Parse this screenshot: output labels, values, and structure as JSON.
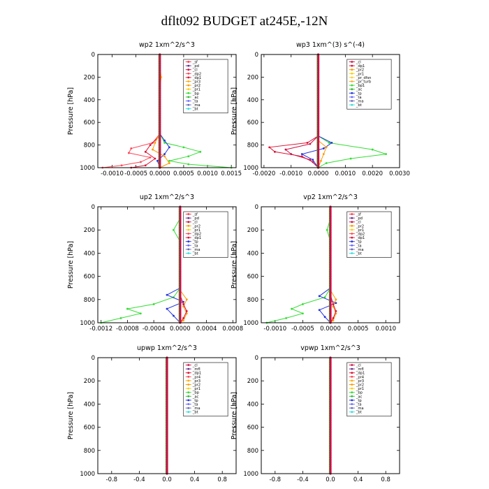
{
  "title": "dflt092  BUDGET at245E,-12N",
  "colors": {
    "sf": "#ff3344",
    "pd": "#6a2a8a",
    "cl": "#cc1144",
    "dp2": "#ff4455",
    "dp1": "#dd1133",
    "pr3": "#ffaa00",
    "pr2": "#ff9900",
    "pr1": "#ffcc00",
    "bp": "#33dd33",
    "ac": "#33bb33",
    "tp": "#2233dd",
    "ta": "#6666ff",
    "ma": "#6666bb",
    "bt": "#33dddd",
    "pr_dfsn": "#ffcc33",
    "pr_turb": "#ffaa22",
    "mfl": "#6a2a8a",
    "pr4": "#ff4455"
  },
  "chart_data": [
    {
      "type": "line",
      "title": "wp2  1xm^2/s^3",
      "ylabel": "Pressure  [hPa]",
      "xlim": [
        -0.0013,
        0.0016
      ],
      "ylim": [
        1000,
        0
      ],
      "xticks": [
        -0.001,
        -0.0005,
        0.0,
        0.0005,
        0.001,
        0.0015
      ],
      "xtick_labels": [
        "-0.0010",
        "-0.0005",
        "0.0000",
        "0.0005",
        "0.0010",
        "0.0015"
      ],
      "yticks": [
        0,
        200,
        400,
        600,
        800,
        1000
      ],
      "legend": [
        "_sf",
        "_pd",
        "_cl",
        "_dp2",
        "_dp1",
        "_pr3",
        "_pr2",
        "_pr1",
        "_bp",
        "_ac",
        "_ta",
        "_ma",
        "_bt"
      ],
      "legend_keys": [
        "sf",
        "pd",
        "cl",
        "dp2",
        "dp1",
        "pr3",
        "pr2",
        "pr1",
        "bp",
        "ac",
        "ta",
        "ma",
        "bt"
      ],
      "legend_placement": "top-right",
      "series": [
        {
          "key": "bp",
          "p": [
            700,
            780,
            820,
            860,
            900,
            940,
            970,
            1000
          ],
          "v": [
            0,
            0.0001,
            0.0005,
            0.00085,
            0.0006,
            0.0002,
            0.0006,
            0.0015
          ]
        },
        {
          "key": "dp2",
          "p": [
            700,
            780,
            830,
            870,
            910,
            950,
            980,
            1000
          ],
          "v": [
            0,
            -0.00015,
            -0.0006,
            -0.00065,
            -0.0002,
            -0.0004,
            -0.0008,
            -0.0012
          ]
        },
        {
          "key": "dp1",
          "p": [
            720,
            800,
            860,
            920,
            980,
            1000
          ],
          "v": [
            0,
            -0.0002,
            -0.0003,
            -0.0001,
            -0.0003,
            -0.0006
          ]
        },
        {
          "key": "tp",
          "p": [
            700,
            760,
            820,
            880,
            940,
            1000
          ],
          "v": [
            0,
            0.0001,
            0.0002,
            0.0001,
            -5e-05,
            0
          ]
        },
        {
          "key": "pr2",
          "p": [
            700,
            780,
            840,
            900,
            960,
            1000
          ],
          "v": [
            0,
            -0.0001,
            -0.00015,
            0.0001,
            0.0002,
            0
          ]
        },
        {
          "key": "pr1",
          "p": [
            100,
            200,
            300
          ],
          "v": [
            0,
            3e-05,
            0
          ]
        }
      ]
    },
    {
      "type": "line",
      "title": "wp3  1xm^(3) s^(-4)",
      "ylabel": "Pressure  [hPa]",
      "xlim": [
        -0.0021,
        0.003
      ],
      "ylim": [
        1000,
        0
      ],
      "xticks": [
        -0.002,
        -0.001,
        0.0,
        0.001,
        0.002,
        0.003
      ],
      "xtick_labels": [
        "-0.0020",
        "-0.0010",
        "0.0000",
        "0.0010",
        "0.0020",
        "0.0030"
      ],
      "yticks": [
        0,
        200,
        400,
        600,
        800,
        1000
      ],
      "legend": [
        "_cl",
        "_dp1",
        "_pr2",
        "_pr1",
        "_pr_dfsn",
        "_pr_turb",
        "_bp1",
        "_ac",
        "_tp",
        "_ta",
        "_ma",
        "_bt"
      ],
      "legend_keys": [
        "cl",
        "dp1",
        "pr2",
        "pr1",
        "pr_dfsn",
        "pr_turb",
        "bp",
        "ac",
        "tp",
        "ta",
        "ma",
        "bt"
      ],
      "legend_placement": "top-right",
      "series": [
        {
          "key": "bp",
          "p": [
            720,
            780,
            840,
            880,
            920,
            960,
            1000
          ],
          "v": [
            0,
            0.0004,
            0.002,
            0.0025,
            0.0012,
            0.0003,
            0
          ]
        },
        {
          "key": "dp1",
          "p": [
            720,
            780,
            820,
            860,
            900,
            950,
            1000
          ],
          "v": [
            0,
            -0.0004,
            -0.0018,
            -0.0016,
            -0.0006,
            -0.0002,
            0
          ]
        },
        {
          "key": "cl",
          "p": [
            720,
            790,
            840,
            880,
            930,
            1000
          ],
          "v": [
            0,
            -0.0003,
            -0.0012,
            -0.001,
            -0.0003,
            0
          ]
        },
        {
          "key": "tp",
          "p": [
            720,
            780,
            830,
            880,
            930,
            1000
          ],
          "v": [
            0,
            0.0005,
            0.0002,
            -0.0006,
            -0.0002,
            0
          ]
        },
        {
          "key": "pr2",
          "p": [
            760,
            820,
            880,
            940,
            1000
          ],
          "v": [
            0,
            0.0003,
            0.0002,
            0.0001,
            0
          ]
        }
      ]
    },
    {
      "type": "line",
      "title": "up2  1xm^2/s^3",
      "ylabel": "Pressure  [hPa]",
      "xlim": [
        -0.00125,
        0.00085
      ],
      "ylim": [
        1000,
        0
      ],
      "xticks": [
        -0.0012,
        -0.0008,
        -0.0004,
        0.0,
        0.0004,
        0.0008
      ],
      "xtick_labels": [
        "-0.0012",
        "-0.0008",
        "-0.0004",
        "0.0000",
        "0.0004",
        "0.0008"
      ],
      "yticks": [
        0,
        200,
        400,
        600,
        800,
        1000
      ],
      "legend": [
        "_sf",
        "_pd",
        "_cl",
        "_pr2",
        "_pr1",
        "_dp2",
        "_dp1",
        "_tp",
        "_ta",
        "_ma",
        "_bt"
      ],
      "legend_keys": [
        "sf",
        "pd",
        "cl",
        "pr2",
        "pr1",
        "dp2",
        "dp1",
        "tp",
        "ta",
        "ma",
        "bt"
      ],
      "legend_placement": "top-right",
      "series": [
        {
          "key": "bp",
          "p": [
            100,
            200,
            300
          ],
          "v": [
            0,
            -0.0001,
            0
          ]
        },
        {
          "key": "bp",
          "p": [
            700,
            780,
            840,
            880,
            920,
            960,
            1000
          ],
          "v": [
            0,
            -0.0001,
            -0.0004,
            -0.0008,
            -0.0006,
            -0.0009,
            -0.0012
          ]
        },
        {
          "key": "tp",
          "p": [
            700,
            760,
            820,
            880,
            940,
            1000
          ],
          "v": [
            0,
            -0.0002,
            5e-05,
            -0.0002,
            -0.0001,
            0
          ]
        },
        {
          "key": "pr2",
          "p": [
            720,
            800,
            860,
            920,
            980,
            1000
          ],
          "v": [
            0,
            0.0001,
            5e-05,
            0.0001,
            5e-05,
            0
          ]
        },
        {
          "key": "dp1",
          "p": [
            760,
            840,
            900,
            960,
            1000
          ],
          "v": [
            0,
            5e-05,
            0.0001,
            5e-05,
            0
          ]
        }
      ]
    },
    {
      "type": "line",
      "title": "vp2  1xm^2/s^3",
      "ylabel": "Pressure  [hPa]",
      "xlim": [
        -0.00125,
        0.00125
      ],
      "ylim": [
        1000,
        0
      ],
      "xticks": [
        -0.001,
        -0.0005,
        0.0,
        0.0005,
        0.001
      ],
      "xtick_labels": [
        "-0.0010",
        "-0.0005",
        "0.0000",
        "0.0005",
        "0.0010"
      ],
      "yticks": [
        0,
        200,
        400,
        600,
        800,
        1000
      ],
      "legend": [
        "_sf",
        "_pd",
        "_cl",
        "_pr2",
        "_pr1",
        "_dp2",
        "_dp1",
        "_tp",
        "_ta",
        "_ma",
        "_bt"
      ],
      "legend_keys": [
        "sf",
        "pd",
        "cl",
        "pr2",
        "pr1",
        "dp2",
        "dp1",
        "tp",
        "ta",
        "ma",
        "bt"
      ],
      "legend_placement": "top-right",
      "series": [
        {
          "key": "bp",
          "p": [
            100,
            200,
            300
          ],
          "v": [
            0,
            -6e-05,
            0
          ]
        },
        {
          "key": "bp",
          "p": [
            700,
            780,
            840,
            880,
            920,
            960,
            1000
          ],
          "v": [
            0,
            -0.0001,
            -0.0005,
            -0.0007,
            -0.0005,
            -0.0008,
            -0.00115
          ]
        },
        {
          "key": "tp",
          "p": [
            700,
            770,
            830,
            890,
            950,
            1000
          ],
          "v": [
            0,
            -0.0002,
            0.0001,
            -0.0002,
            -0.0001,
            0
          ]
        },
        {
          "key": "pr2",
          "p": [
            720,
            800,
            860,
            920,
            980,
            1000
          ],
          "v": [
            0,
            0.0001,
            5e-05,
            0.0001,
            5e-05,
            0
          ]
        },
        {
          "key": "dp1",
          "p": [
            760,
            840,
            900,
            960,
            1000
          ],
          "v": [
            0,
            5e-05,
            0.0001,
            5e-05,
            0
          ]
        }
      ]
    },
    {
      "type": "line",
      "title": "upwp  1xm^2/s^3",
      "ylabel": "Pressure  [hPa]",
      "xlim": [
        -1.0,
        1.0
      ],
      "ylim": [
        1000,
        0
      ],
      "xticks": [
        -0.8,
        -0.4,
        0.0,
        0.4,
        0.8
      ],
      "xtick_labels": [
        "-0.8",
        "-0.4",
        "0.0",
        "0.4",
        "0.8"
      ],
      "yticks": [
        0,
        200,
        400,
        600,
        800,
        1000
      ],
      "legend": [
        "_cl",
        "_mfl",
        "_dp1",
        "_pr4",
        "_pr3",
        "_pr2",
        "_pr1",
        "_bp",
        "_ac",
        "_tp",
        "_ta",
        "_ma",
        "_bt"
      ],
      "legend_keys": [
        "cl",
        "mfl",
        "dp1",
        "pr4",
        "pr3",
        "pr2",
        "pr1",
        "bp",
        "ac",
        "tp",
        "ta",
        "ma",
        "bt"
      ],
      "legend_placement": "top-right",
      "series": []
    },
    {
      "type": "line",
      "title": "vpwp  1xm^2/s^3",
      "ylabel": "Pressure  [hPa]",
      "xlim": [
        -1.0,
        1.0
      ],
      "ylim": [
        1000,
        0
      ],
      "xticks": [
        -0.8,
        -0.4,
        0.0,
        0.4,
        0.8
      ],
      "xtick_labels": [
        "-0.8",
        "-0.4",
        "0.0",
        "0.4",
        "0.8"
      ],
      "yticks": [
        0,
        200,
        400,
        600,
        800,
        1000
      ],
      "legend": [
        "_cl",
        "_mfl",
        "_dp1",
        "_pr4",
        "_pr3",
        "_pr2",
        "_pr1",
        "_bp",
        "_ac",
        "_tp",
        "_ta",
        "_ma",
        "_bt"
      ],
      "legend_keys": [
        "cl",
        "mfl",
        "dp1",
        "pr4",
        "pr3",
        "pr2",
        "pr1",
        "bp",
        "ac",
        "tp",
        "ta",
        "ma",
        "bt"
      ],
      "legend_placement": "top-right",
      "series": []
    }
  ]
}
